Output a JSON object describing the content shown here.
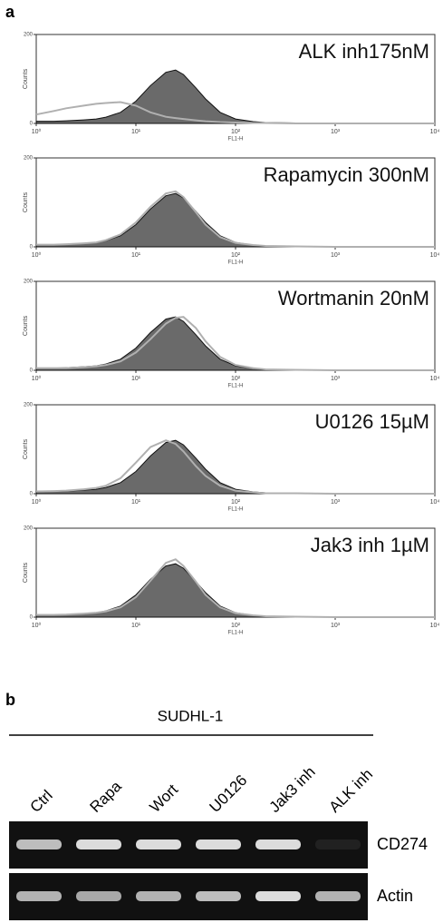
{
  "panel_label_a": "a",
  "chart_data": [
    {
      "type": "area",
      "title": "ALK inh175nM",
      "xlabel": "FL1-H",
      "ylabel": "Counts",
      "log_x": true,
      "x": [
        1,
        1.5,
        2,
        3,
        4,
        5,
        7,
        10,
        14,
        20,
        25,
        30,
        40,
        50,
        70,
        100,
        150,
        200,
        400,
        1000,
        10000
      ],
      "xlim": [
        1,
        10000
      ],
      "xticks": [
        {
          "value": 1,
          "label": "10⁰"
        },
        {
          "value": 10,
          "label": "10¹"
        },
        {
          "value": 100,
          "label": "10²"
        },
        {
          "value": 1000,
          "label": "10³"
        },
        {
          "value": 10000,
          "label": "10⁴"
        }
      ],
      "ylim": [
        0,
        200
      ],
      "yticks": [
        0,
        200
      ],
      "series": [
        {
          "color": "#5a5a5a",
          "filled": true,
          "values": [
            5,
            5,
            6,
            8,
            10,
            14,
            25,
            50,
            85,
            115,
            120,
            110,
            80,
            55,
            25,
            10,
            4,
            2,
            1,
            0,
            0
          ]
        },
        {
          "color": "#b0b0b0",
          "filled": false,
          "values": [
            20,
            28,
            34,
            40,
            44,
            46,
            48,
            40,
            25,
            15,
            12,
            10,
            7,
            5,
            3,
            2,
            1,
            1,
            0,
            0,
            0
          ]
        }
      ]
    },
    {
      "type": "area",
      "title": "Rapamycin 300nM",
      "xlabel": "FL1-H",
      "ylabel": "Counts",
      "log_x": true,
      "x": [
        1,
        1.5,
        2,
        3,
        4,
        5,
        7,
        10,
        14,
        20,
        25,
        30,
        40,
        50,
        70,
        100,
        150,
        200,
        400,
        1000,
        10000
      ],
      "xlim": [
        1,
        10000
      ],
      "xticks": [
        {
          "value": 1,
          "label": "10⁰"
        },
        {
          "value": 10,
          "label": "10¹"
        },
        {
          "value": 100,
          "label": "10²"
        },
        {
          "value": 1000,
          "label": "10³"
        },
        {
          "value": 10000,
          "label": "10⁴"
        }
      ],
      "ylim": [
        0,
        200
      ],
      "yticks": [
        0,
        200
      ],
      "series": [
        {
          "color": "#5a5a5a",
          "filled": true,
          "values": [
            5,
            5,
            6,
            8,
            10,
            14,
            25,
            50,
            85,
            115,
            120,
            110,
            80,
            55,
            25,
            10,
            4,
            2,
            1,
            0,
            0
          ]
        },
        {
          "color": "#b0b0b0",
          "filled": false,
          "values": [
            5,
            5,
            6,
            8,
            10,
            15,
            28,
            55,
            90,
            120,
            125,
            112,
            78,
            50,
            22,
            9,
            4,
            2,
            1,
            0,
            0
          ]
        }
      ]
    },
    {
      "type": "area",
      "title": "Wortmanin 20nM",
      "xlabel": "FL1-H",
      "ylabel": "Counts",
      "log_x": true,
      "x": [
        1,
        1.5,
        2,
        3,
        4,
        5,
        7,
        10,
        14,
        20,
        25,
        30,
        40,
        50,
        70,
        100,
        150,
        200,
        400,
        1000,
        10000
      ],
      "xlim": [
        1,
        10000
      ],
      "xticks": [
        {
          "value": 1,
          "label": "10⁰"
        },
        {
          "value": 10,
          "label": "10¹"
        },
        {
          "value": 100,
          "label": "10²"
        },
        {
          "value": 1000,
          "label": "10³"
        },
        {
          "value": 10000,
          "label": "10⁴"
        }
      ],
      "ylim": [
        0,
        200
      ],
      "yticks": [
        0,
        200
      ],
      "series": [
        {
          "color": "#5a5a5a",
          "filled": true,
          "values": [
            5,
            5,
            6,
            8,
            10,
            14,
            25,
            50,
            85,
            115,
            120,
            110,
            80,
            55,
            25,
            10,
            4,
            2,
            1,
            0,
            0
          ]
        },
        {
          "color": "#b0b0b0",
          "filled": false,
          "values": [
            5,
            5,
            5,
            7,
            9,
            12,
            20,
            40,
            70,
            105,
            118,
            120,
            95,
            65,
            30,
            12,
            5,
            2,
            1,
            0,
            0
          ]
        }
      ]
    },
    {
      "type": "area",
      "title": "U0126 15µM",
      "xlabel": "FL1-H",
      "ylabel": "Counts",
      "log_x": true,
      "x": [
        1,
        1.5,
        2,
        3,
        4,
        5,
        7,
        10,
        14,
        20,
        25,
        30,
        40,
        50,
        70,
        100,
        150,
        200,
        400,
        1000,
        10000
      ],
      "xlim": [
        1,
        10000
      ],
      "xticks": [
        {
          "value": 1,
          "label": "10⁰"
        },
        {
          "value": 10,
          "label": "10¹"
        },
        {
          "value": 100,
          "label": "10²"
        },
        {
          "value": 1000,
          "label": "10³"
        },
        {
          "value": 10000,
          "label": "10⁴"
        }
      ],
      "ylim": [
        0,
        200
      ],
      "yticks": [
        0,
        200
      ],
      "series": [
        {
          "color": "#5a5a5a",
          "filled": true,
          "values": [
            5,
            5,
            6,
            8,
            10,
            14,
            25,
            50,
            85,
            115,
            120,
            110,
            80,
            55,
            25,
            10,
            4,
            2,
            1,
            0,
            0
          ]
        },
        {
          "color": "#b0b0b0",
          "filled": false,
          "values": [
            5,
            6,
            7,
            10,
            13,
            18,
            35,
            70,
            105,
            120,
            112,
            95,
            62,
            40,
            18,
            7,
            3,
            1,
            1,
            0,
            0
          ]
        }
      ]
    },
    {
      "type": "area",
      "title": "Jak3 inh 1µM",
      "xlabel": "FL1-H",
      "ylabel": "Counts",
      "log_x": true,
      "x": [
        1,
        1.5,
        2,
        3,
        4,
        5,
        7,
        10,
        14,
        20,
        25,
        30,
        40,
        50,
        70,
        100,
        150,
        200,
        400,
        1000,
        10000
      ],
      "xlim": [
        1,
        10000
      ],
      "xticks": [
        {
          "value": 1,
          "label": "10⁰"
        },
        {
          "value": 10,
          "label": "10¹"
        },
        {
          "value": 100,
          "label": "10²"
        },
        {
          "value": 1000,
          "label": "10³"
        },
        {
          "value": 10000,
          "label": "10⁴"
        }
      ],
      "ylim": [
        0,
        200
      ],
      "yticks": [
        0,
        200
      ],
      "series": [
        {
          "color": "#5a5a5a",
          "filled": true,
          "values": [
            5,
            5,
            6,
            8,
            10,
            14,
            25,
            50,
            85,
            115,
            120,
            110,
            80,
            55,
            25,
            10,
            4,
            2,
            1,
            0,
            0
          ]
        },
        {
          "color": "#b0b0b0",
          "filled": false,
          "values": [
            5,
            5,
            6,
            8,
            10,
            13,
            22,
            45,
            82,
            122,
            130,
            115,
            80,
            50,
            22,
            9,
            4,
            2,
            1,
            0,
            0
          ]
        }
      ]
    }
  ],
  "gel": {
    "panel_label": "b",
    "cell_line": "SUDHL-1",
    "lanes": [
      "Ctrl",
      "Rapa",
      "Wort",
      "U0126",
      "Jak3 inh",
      "ALK inh"
    ],
    "rows": [
      "CD274",
      "Actin"
    ]
  }
}
